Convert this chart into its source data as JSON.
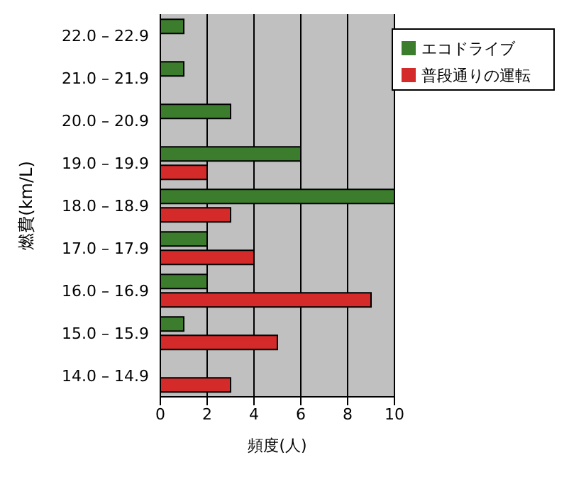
{
  "chart_data": {
    "type": "bar",
    "orientation": "horizontal",
    "xlabel": "頻度(人)",
    "ylabel": "燃費(km/L)",
    "categories": [
      "22.0 – 22.9",
      "21.0 – 21.9",
      "20.0 – 20.9",
      "19.0 – 19.9",
      "18.0 – 18.9",
      "17.0 – 17.9",
      "16.0 – 16.9",
      "15.0 – 15.9",
      "14.0 – 14.9"
    ],
    "series": [
      {
        "name": "エコドライブ",
        "color": "#3b7d2c",
        "values": [
          1,
          1,
          3,
          6,
          10,
          2,
          2,
          1,
          null
        ]
      },
      {
        "name": "普段通りの運転",
        "color": "#d42a2a",
        "values": [
          null,
          null,
          null,
          2,
          3,
          4,
          9,
          5,
          3
        ]
      }
    ],
    "xlim": [
      0,
      10
    ],
    "xticks": [
      0,
      2,
      4,
      6,
      8,
      10
    ],
    "grid": "x",
    "legend": "top right"
  }
}
